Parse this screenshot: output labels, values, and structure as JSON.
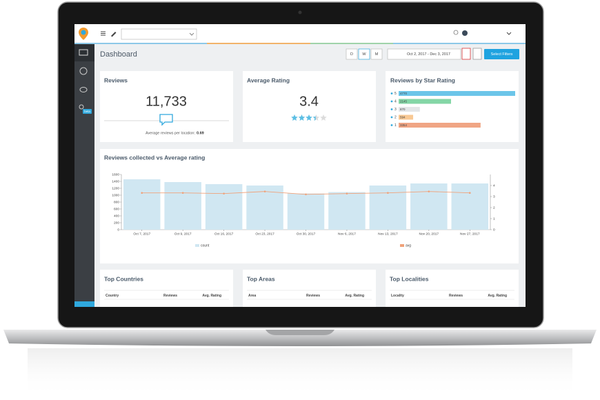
{
  "title": "Dashboard",
  "period_buttons": [
    "D",
    "W",
    "M"
  ],
  "date_range": "Oct 2, 2017 - Dec 3, 2017",
  "filter_button": "Select Filters",
  "sidebar": {
    "badge": "beta"
  },
  "cards": {
    "reviews": {
      "title": "Reviews",
      "value": "11,733",
      "note_label": "Average reviews per location:",
      "note_value": 0.69
    },
    "average_rating": {
      "title": "Average Rating",
      "value": 3.4
    },
    "star_rating": {
      "title": "Reviews by Star Rating",
      "rows": [
        {
          "stars": 5,
          "count": 4770,
          "color": "#6cc5e9"
        },
        {
          "stars": 4,
          "count": 2145,
          "color": "#84d6a6"
        },
        {
          "stars": 3,
          "count": 870,
          "color": "#e4e6e8"
        },
        {
          "stars": 2,
          "count": 594,
          "color": "#f8c994"
        },
        {
          "stars": 1,
          "count": 3354,
          "color": "#f0a584"
        }
      ]
    }
  },
  "chart_data": {
    "type": "combo",
    "title": "Reviews collected vs Average rating",
    "categories": [
      "Oct 7, 2017",
      "Oct 9, 2017",
      "Oct 16, 2017",
      "Oct 23, 2017",
      "Oct 30, 2017",
      "Nov 6, 2017",
      "Nov 13, 2017",
      "Nov 20, 2017",
      "Nov 27, 2017"
    ],
    "series": [
      {
        "name": "count",
        "color": "#d0e7f2",
        "values": [
          1460,
          1380,
          1320,
          1280,
          1050,
          1090,
          1280,
          1340,
          1340
        ]
      },
      {
        "name": "avg",
        "color": "#f0a27a",
        "axis": "y2",
        "values": [
          3.33,
          3.33,
          3.27,
          3.46,
          3.2,
          3.27,
          3.33,
          3.46,
          3.33
        ]
      }
    ],
    "ylim": [
      0,
      1600
    ],
    "yticks": [
      0,
      200,
      400,
      600,
      800,
      1000,
      1200,
      1400,
      1600
    ],
    "y2lim": [
      0,
      5
    ],
    "y2ticks": [
      0,
      1,
      2,
      3,
      4
    ]
  },
  "tables": [
    {
      "title": "Top Countries",
      "columns": [
        "Country",
        "Reviews",
        "Avg. Rating"
      ]
    },
    {
      "title": "Top Areas",
      "columns": [
        "Area",
        "Reviews",
        "Avg. Rating"
      ]
    },
    {
      "title": "Top Localities",
      "columns": [
        "Locality",
        "Reviews",
        "Avg. Rating"
      ]
    }
  ]
}
